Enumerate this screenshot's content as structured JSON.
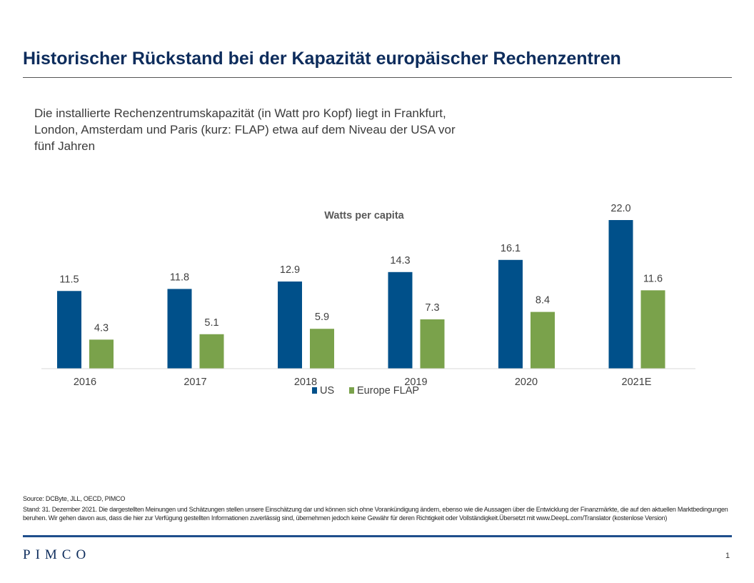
{
  "header": {
    "title": "Historischer Rückstand bei der Kapazität europäischer Rechenzentren",
    "subtitle": "Die installierte Rechenzentrumskapazität (in Watt pro Kopf) liegt in Frankfurt, London, Amsterdam und Paris (kurz: FLAP) etwa auf dem Niveau der USA vor fünf Jahren"
  },
  "chart_data": {
    "type": "bar",
    "title": "Watts per capita",
    "categories": [
      "2016",
      "2017",
      "2018",
      "2019",
      "2020",
      "2021E"
    ],
    "series": [
      {
        "name": "US",
        "values": [
          11.5,
          11.8,
          12.9,
          14.3,
          16.1,
          22.0
        ],
        "labels": [
          "11.5",
          "11.8",
          "12.9",
          "14.3",
          "16.1",
          "22.0"
        ],
        "color": "#00508a"
      },
      {
        "name": "Europe FLAP",
        "values": [
          4.3,
          5.1,
          5.9,
          7.3,
          8.4,
          11.6
        ],
        "labels": [
          "4.3",
          "5.1",
          "5.9",
          "7.3",
          "8.4",
          "11.6"
        ],
        "color": "#7aa24b"
      }
    ],
    "ylim": [
      0,
      22
    ],
    "grid": false,
    "legend": "bottom-center",
    "data_labels": true
  },
  "footer": {
    "source": "Source: DCByte, JLL, OECD, PIMCO",
    "disclaimer": "Stand: 31. Dezember 2021. Die dargestellten Meinungen und Schätzungen stellen unsere Einschätzung dar und können sich ohne Vorankündigung ändern, ebenso wie die Aussagen über die Entwicklung der Finanzmärkte, die auf den aktuellen Marktbedingungen beruhen. Wir gehen davon aus, dass die hier zur Verfügung gestellten Informationen zuverlässig sind, übernehmen jedoch keine Gewähr für deren Richtigkeit oder Vollständigkeit.Übersetzt mit www.DeepL.com/Translator (kostenlose Version)",
    "logo": "PIMCO",
    "page_number": "1"
  }
}
